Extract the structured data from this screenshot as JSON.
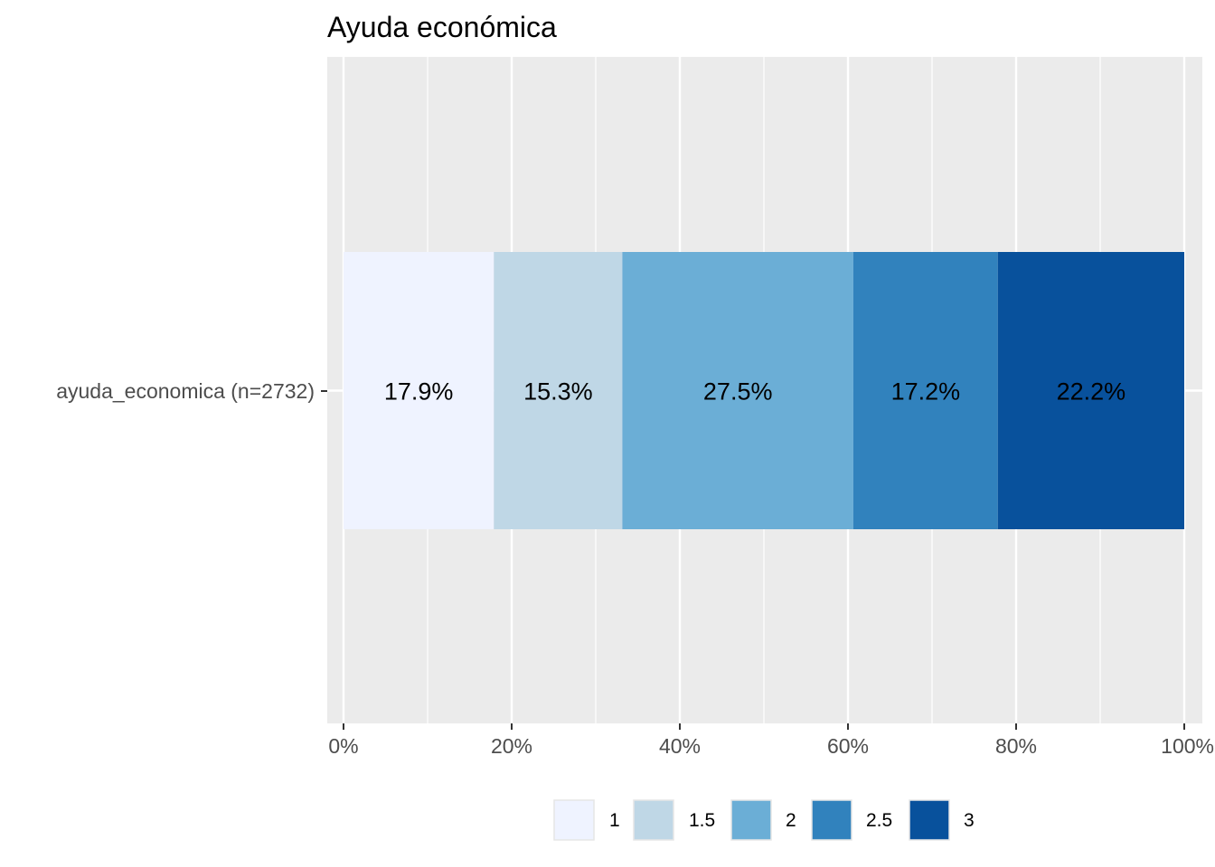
{
  "chart_data": {
    "type": "bar",
    "orientation": "horizontal",
    "stacked": true,
    "title": "Ayuda económica",
    "xlabel": "",
    "ylabel": "",
    "categories": [
      "ayuda_economica (n=2732)"
    ],
    "xlim": [
      0,
      100
    ],
    "x_ticks": [
      "0%",
      "20%",
      "40%",
      "60%",
      "80%",
      "100%"
    ],
    "grid": true,
    "legend_position": "bottom",
    "series": [
      {
        "name": "1",
        "values": [
          17.9
        ],
        "label": "17.9%",
        "color": "#eff3ff"
      },
      {
        "name": "1.5",
        "values": [
          15.3
        ],
        "label": "15.3%",
        "color": "#bfd7e6"
      },
      {
        "name": "2",
        "values": [
          27.5
        ],
        "label": "27.5%",
        "color": "#6baed6"
      },
      {
        "name": "2.5",
        "values": [
          17.2
        ],
        "label": "17.2%",
        "color": "#3182bd"
      },
      {
        "name": "3",
        "values": [
          22.2
        ],
        "label": "22.2%",
        "color": "#08519c"
      }
    ]
  }
}
